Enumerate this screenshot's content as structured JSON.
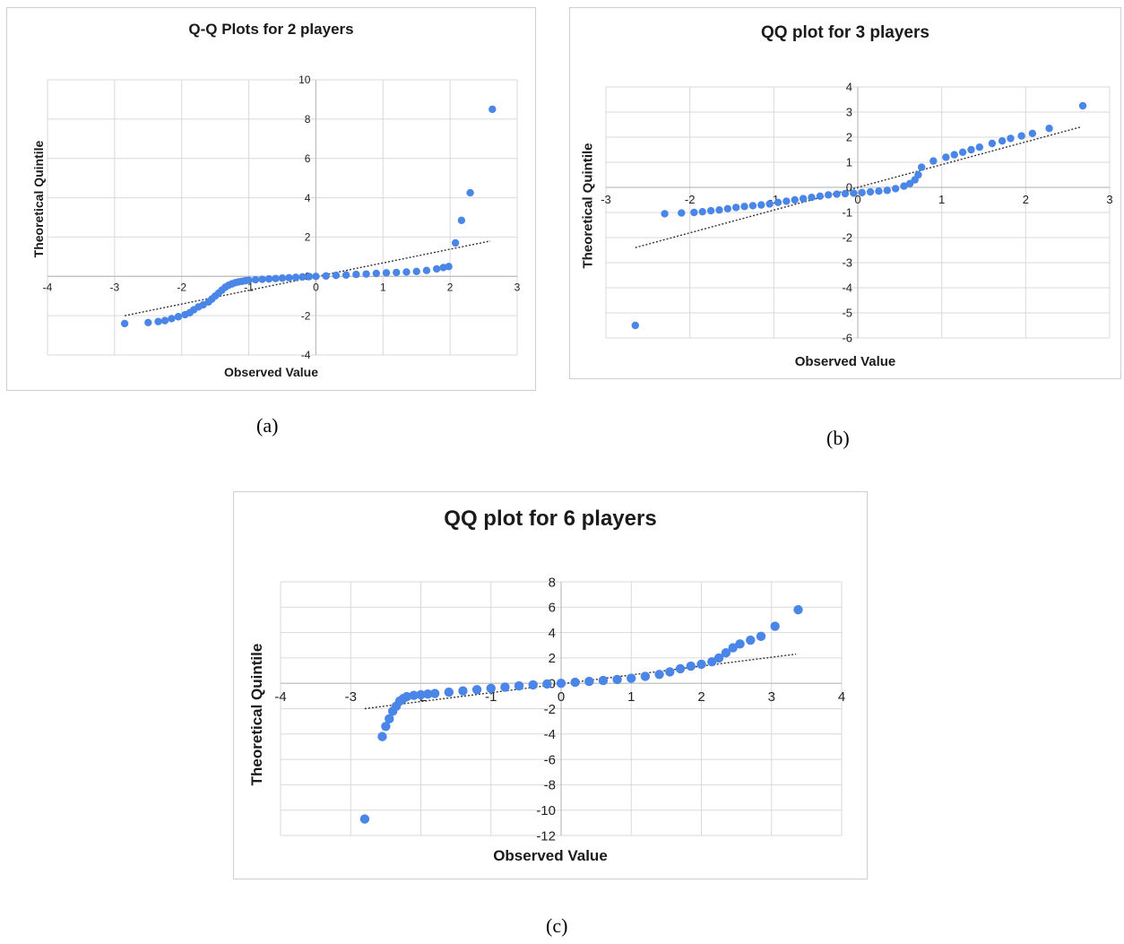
{
  "colors": {
    "points": "#4a86e8",
    "trend": "#333333",
    "grid": "#d9d9d9",
    "axis": "#bdbdbd"
  },
  "captions": [
    "(a)",
    "(b)",
    "(c)"
  ],
  "chart_data": [
    {
      "type": "scatter",
      "title": "Q-Q Plots for 2 players",
      "xlabel": "Observed Value",
      "ylabel": "Theoretical Quintile",
      "xlim": [
        -4,
        3
      ],
      "ylim": [
        -4,
        10
      ],
      "xticks": [
        -4,
        -3,
        -2,
        -1,
        0,
        1,
        2,
        3
      ],
      "yticks": [
        -4,
        -2,
        0,
        2,
        4,
        6,
        8,
        10
      ],
      "xtick_labels": [
        "-4",
        "-3",
        "-2",
        "-1",
        "0",
        "1",
        "2",
        "3"
      ],
      "ytick_labels": [
        "-4",
        "-2",
        "0",
        "2",
        "4",
        "6",
        "8",
        "10"
      ],
      "grid": true,
      "trendline": {
        "style": "dotted",
        "from": [
          -2.85,
          -2.0
        ],
        "to": [
          2.6,
          1.8
        ]
      },
      "points": [
        [
          -2.85,
          -2.4
        ],
        [
          -2.5,
          -2.35
        ],
        [
          -2.35,
          -2.3
        ],
        [
          -2.25,
          -2.25
        ],
        [
          -2.15,
          -2.15
        ],
        [
          -2.05,
          -2.05
        ],
        [
          -1.95,
          -1.95
        ],
        [
          -1.88,
          -1.85
        ],
        [
          -1.82,
          -1.7
        ],
        [
          -1.75,
          -1.55
        ],
        [
          -1.68,
          -1.45
        ],
        [
          -1.6,
          -1.3
        ],
        [
          -1.55,
          -1.15
        ],
        [
          -1.5,
          -1.0
        ],
        [
          -1.45,
          -0.85
        ],
        [
          -1.4,
          -0.7
        ],
        [
          -1.35,
          -0.55
        ],
        [
          -1.3,
          -0.45
        ],
        [
          -1.25,
          -0.38
        ],
        [
          -1.2,
          -0.32
        ],
        [
          -1.15,
          -0.28
        ],
        [
          -1.1,
          -0.25
        ],
        [
          -1.05,
          -0.22
        ],
        [
          -1.0,
          -0.2
        ],
        [
          -0.9,
          -0.17
        ],
        [
          -0.8,
          -0.15
        ],
        [
          -0.7,
          -0.13
        ],
        [
          -0.6,
          -0.11
        ],
        [
          -0.5,
          -0.09
        ],
        [
          -0.4,
          -0.07
        ],
        [
          -0.3,
          -0.05
        ],
        [
          -0.2,
          -0.03
        ],
        [
          -0.1,
          -0.01
        ],
        [
          0.0,
          0.0
        ],
        [
          0.15,
          0.02
        ],
        [
          0.3,
          0.05
        ],
        [
          0.45,
          0.07
        ],
        [
          0.6,
          0.1
        ],
        [
          0.75,
          0.12
        ],
        [
          0.9,
          0.15
        ],
        [
          1.05,
          0.18
        ],
        [
          1.2,
          0.2
        ],
        [
          1.35,
          0.22
        ],
        [
          1.5,
          0.25
        ],
        [
          1.65,
          0.3
        ],
        [
          1.8,
          0.38
        ],
        [
          1.9,
          0.45
        ],
        [
          1.98,
          0.5
        ],
        [
          2.08,
          1.7
        ],
        [
          2.17,
          2.85
        ],
        [
          2.3,
          4.25
        ],
        [
          2.63,
          8.5
        ]
      ]
    },
    {
      "type": "scatter",
      "title": "QQ plot for 3 players",
      "xlabel": "Observed Value",
      "ylabel": "Theoretical Quintile",
      "xlim": [
        -3,
        3
      ],
      "ylim": [
        -6,
        4
      ],
      "xticks": [
        -3,
        -2,
        -1,
        0,
        1,
        2,
        3
      ],
      "yticks": [
        -6,
        -5,
        -4,
        -3,
        -2,
        -1,
        0,
        1,
        2,
        3,
        4
      ],
      "xtick_labels": [
        "-3",
        "-2",
        "-1",
        "0",
        "1",
        "2",
        "3"
      ],
      "ytick_labels": [
        "-6",
        "-5",
        "-4",
        "-3",
        "-2",
        "-1",
        "0",
        "1",
        "2",
        "3",
        "4"
      ],
      "grid": true,
      "trendline": {
        "style": "dotted",
        "from": [
          -2.65,
          -2.4
        ],
        "to": [
          2.65,
          2.4
        ]
      },
      "points": [
        [
          -2.65,
          -5.5
        ],
        [
          -2.3,
          -1.05
        ],
        [
          -2.1,
          -1.02
        ],
        [
          -1.95,
          -1.0
        ],
        [
          -1.85,
          -0.97
        ],
        [
          -1.75,
          -0.93
        ],
        [
          -1.65,
          -0.9
        ],
        [
          -1.55,
          -0.85
        ],
        [
          -1.45,
          -0.8
        ],
        [
          -1.35,
          -0.76
        ],
        [
          -1.25,
          -0.73
        ],
        [
          -1.15,
          -0.7
        ],
        [
          -1.05,
          -0.66
        ],
        [
          -0.95,
          -0.6
        ],
        [
          -0.85,
          -0.55
        ],
        [
          -0.75,
          -0.5
        ],
        [
          -0.65,
          -0.45
        ],
        [
          -0.55,
          -0.4
        ],
        [
          -0.45,
          -0.35
        ],
        [
          -0.35,
          -0.3
        ],
        [
          -0.25,
          -0.27
        ],
        [
          -0.15,
          -0.25
        ],
        [
          -0.05,
          -0.23
        ],
        [
          0.05,
          -0.21
        ],
        [
          0.15,
          -0.18
        ],
        [
          0.25,
          -0.15
        ],
        [
          0.35,
          -0.12
        ],
        [
          0.45,
          -0.05
        ],
        [
          0.55,
          0.05
        ],
        [
          0.62,
          0.15
        ],
        [
          0.68,
          0.3
        ],
        [
          0.72,
          0.5
        ],
        [
          0.76,
          0.8
        ],
        [
          0.9,
          1.05
        ],
        [
          1.05,
          1.2
        ],
        [
          1.15,
          1.3
        ],
        [
          1.25,
          1.4
        ],
        [
          1.35,
          1.5
        ],
        [
          1.45,
          1.6
        ],
        [
          1.6,
          1.75
        ],
        [
          1.72,
          1.85
        ],
        [
          1.82,
          1.95
        ],
        [
          1.95,
          2.05
        ],
        [
          2.08,
          2.15
        ],
        [
          2.28,
          2.35
        ],
        [
          2.68,
          3.25
        ]
      ]
    },
    {
      "type": "scatter",
      "title": "QQ plot for 6 players",
      "xlabel": "Observed Value",
      "ylabel": "Theoretical Quintile",
      "xlim": [
        -4,
        4
      ],
      "ylim": [
        -12,
        8
      ],
      "xticks": [
        -4,
        -3,
        -2,
        -1,
        0,
        1,
        2,
        3,
        4
      ],
      "yticks": [
        -12,
        -10,
        -8,
        -6,
        -4,
        -2,
        0,
        2,
        4,
        6,
        8
      ],
      "xtick_labels": [
        "-4",
        "-3",
        "-2",
        "-1",
        "0",
        "1",
        "2",
        "3",
        "4"
      ],
      "ytick_labels": [
        "-12",
        "-10",
        "-8",
        "-6",
        "-4",
        "-2",
        "0",
        "2",
        "4",
        "6",
        "8"
      ],
      "grid": true,
      "trendline": {
        "style": "dotted",
        "from": [
          -2.8,
          -2.0
        ],
        "to": [
          3.35,
          2.3
        ]
      },
      "points": [
        [
          -2.8,
          -10.7
        ],
        [
          -2.55,
          -4.2
        ],
        [
          -2.5,
          -3.4
        ],
        [
          -2.45,
          -2.8
        ],
        [
          -2.4,
          -2.2
        ],
        [
          -2.35,
          -1.8
        ],
        [
          -2.3,
          -1.4
        ],
        [
          -2.25,
          -1.2
        ],
        [
          -2.2,
          -1.05
        ],
        [
          -2.1,
          -0.95
        ],
        [
          -2.0,
          -0.9
        ],
        [
          -1.9,
          -0.85
        ],
        [
          -1.8,
          -0.8
        ],
        [
          -1.6,
          -0.7
        ],
        [
          -1.4,
          -0.6
        ],
        [
          -1.2,
          -0.5
        ],
        [
          -1.0,
          -0.4
        ],
        [
          -0.8,
          -0.3
        ],
        [
          -0.6,
          -0.2
        ],
        [
          -0.4,
          -0.12
        ],
        [
          -0.2,
          -0.05
        ],
        [
          0.0,
          0.0
        ],
        [
          0.2,
          0.08
        ],
        [
          0.4,
          0.15
        ],
        [
          0.6,
          0.22
        ],
        [
          0.8,
          0.3
        ],
        [
          1.0,
          0.4
        ],
        [
          1.2,
          0.55
        ],
        [
          1.4,
          0.7
        ],
        [
          1.55,
          0.9
        ],
        [
          1.7,
          1.15
        ],
        [
          1.85,
          1.35
        ],
        [
          2.0,
          1.5
        ],
        [
          2.15,
          1.7
        ],
        [
          2.25,
          2.0
        ],
        [
          2.35,
          2.4
        ],
        [
          2.45,
          2.8
        ],
        [
          2.55,
          3.1
        ],
        [
          2.7,
          3.4
        ],
        [
          2.85,
          3.7
        ],
        [
          3.05,
          4.5
        ],
        [
          3.38,
          5.8
        ]
      ]
    }
  ]
}
